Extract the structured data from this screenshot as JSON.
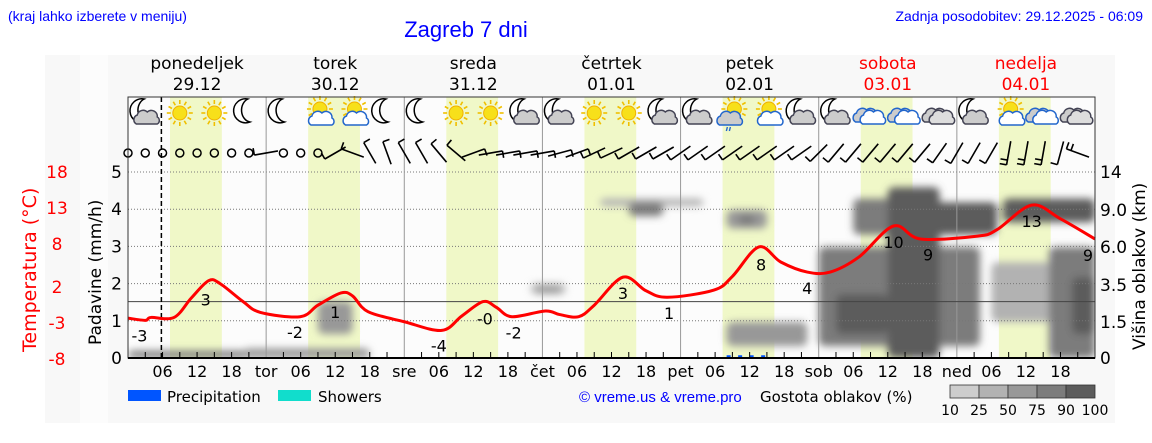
{
  "header": {
    "hint": "(kraj lahko izberete v meniju)",
    "title": "Zagreb 7 dni",
    "updated": "Zadnja posodobitev: 29.12.2025 - 06:09"
  },
  "footer": {
    "legend_precip": "Precipitation",
    "legend_showers": "Showers",
    "copyright": "© vreme.us & vreme.pro",
    "cloud_density_label": "Gostota oblakov (%)",
    "cloud_density_levels": [
      "10",
      "25",
      "50",
      "75",
      "90",
      "100"
    ],
    "cloud_density_colors": [
      "#cdcdcd",
      "#b2b2b2",
      "#989898",
      "#7c7c7c",
      "#5c5c5c"
    ]
  },
  "colors": {
    "precip": "#0055ff",
    "showers": "#11ddcc",
    "temp": "#ff0000",
    "daylight": "#f0f8c8",
    "weekend": "#ff0000",
    "text": "#0000ff"
  },
  "chart_data": {
    "type": "meteogram",
    "days": [
      {
        "name": "ponedeljek",
        "date": "29.12",
        "abbr": "",
        "weekend": false
      },
      {
        "name": "torek",
        "date": "30.12",
        "abbr": "tor",
        "weekend": false
      },
      {
        "name": "sreda",
        "date": "31.12",
        "abbr": "sre",
        "weekend": false
      },
      {
        "name": "četrtek",
        "date": "01.01",
        "abbr": "čet",
        "weekend": false
      },
      {
        "name": "petek",
        "date": "02.01",
        "abbr": "pet",
        "weekend": false
      },
      {
        "name": "sobota",
        "date": "03.01",
        "abbr": "sob",
        "weekend": true
      },
      {
        "name": "nedelja",
        "date": "04.01",
        "abbr": "ned",
        "weekend": true
      }
    ],
    "hour_ticks": [
      "06",
      "12",
      "18"
    ],
    "current_time_hour": 5.8,
    "daylight_hours": [
      7.3,
      16.3
    ],
    "precip_axis": {
      "label": "Padavine (mm/h)",
      "ticks": [
        0,
        1,
        2,
        3,
        4,
        5
      ],
      "range": [
        0,
        5.4
      ]
    },
    "temp_axis": {
      "label": "Temperatura (°C)",
      "ticks": [
        18,
        13,
        8,
        2,
        -3,
        -8
      ],
      "range": [
        -8,
        18
      ]
    },
    "cloud_axis": {
      "label": "Višina oblakov (km)",
      "ticks": [
        "14",
        "9.0",
        "6.0",
        "3.5",
        "1.5",
        "0"
      ],
      "values": [
        14,
        9,
        6,
        3.5,
        1.5,
        0
      ]
    },
    "temperature": [
      [
        0,
        -2.3
      ],
      [
        3,
        -2.6
      ],
      [
        4,
        -2.2
      ],
      [
        8,
        -2.2
      ],
      [
        11,
        0.5
      ],
      [
        14,
        2.9
      ],
      [
        16,
        2.5
      ],
      [
        20,
        0
      ],
      [
        23,
        -1.5
      ],
      [
        29.9,
        -2.1
      ],
      [
        33,
        -0.5
      ],
      [
        37,
        1.2
      ],
      [
        39,
        0.8
      ],
      [
        41.7,
        -1.4
      ],
      [
        48,
        -2.8
      ],
      [
        54.5,
        -4
      ],
      [
        58,
        -2
      ],
      [
        61.7,
        0
      ],
      [
        64,
        -0.8
      ],
      [
        66.7,
        -2.1
      ],
      [
        72.5,
        -1.3
      ],
      [
        75,
        -1.8
      ],
      [
        78.3,
        -2.1
      ],
      [
        81,
        -0.5
      ],
      [
        86,
        3.4
      ],
      [
        90,
        1.5
      ],
      [
        93.7,
        0.6
      ],
      [
        101.8,
        1.6
      ],
      [
        105,
        3.5
      ],
      [
        109.6,
        7.6
      ],
      [
        113.4,
        5.5
      ],
      [
        118,
        4.1
      ],
      [
        122,
        4.1
      ],
      [
        127,
        6.2
      ],
      [
        133,
        10.5
      ],
      [
        137.7,
        8.7
      ],
      [
        147.6,
        9.1
      ],
      [
        151,
        10
      ],
      [
        157,
        13.4
      ],
      [
        162,
        11.5
      ],
      [
        168,
        8.7
      ]
    ],
    "temp_labels": [
      [
        2,
        "-3"
      ],
      [
        13.5,
        "3"
      ],
      [
        29,
        "-2"
      ],
      [
        36,
        "1"
      ],
      [
        54,
        "-4"
      ],
      [
        62,
        "-0"
      ],
      [
        67,
        "-2"
      ],
      [
        86,
        "3"
      ],
      [
        94,
        "1"
      ],
      [
        110,
        "8"
      ],
      [
        118,
        "4"
      ],
      [
        133,
        "10"
      ],
      [
        139,
        "9"
      ],
      [
        157,
        "13"
      ],
      [
        168,
        "9"
      ]
    ],
    "precipitation": [
      [
        104,
        0.02
      ],
      [
        106,
        0.02
      ],
      [
        108,
        0.02
      ],
      [
        110,
        0.02
      ]
    ],
    "clouds": [
      [
        0,
        42,
        0,
        0.3,
        75
      ],
      [
        20,
        42,
        0,
        0.4,
        50
      ],
      [
        33,
        39,
        1,
        2.6,
        50
      ],
      [
        70,
        76,
        3,
        3.6,
        25
      ],
      [
        71,
        75,
        3.2,
        3.4,
        50
      ],
      [
        82,
        100,
        9.5,
        10.5,
        25
      ],
      [
        87,
        93,
        8.5,
        10,
        75
      ],
      [
        104,
        111,
        7.5,
        9,
        50
      ],
      [
        106,
        109,
        7.8,
        8.6,
        75
      ],
      [
        104,
        118,
        0.5,
        1.5,
        50
      ],
      [
        120,
        148,
        0.5,
        6,
        75
      ],
      [
        123,
        132,
        1,
        3,
        90
      ],
      [
        126,
        138,
        7,
        10.5,
        75
      ],
      [
        132,
        141,
        0,
        12,
        90
      ],
      [
        140,
        151,
        7,
        10,
        90
      ],
      [
        150,
        168,
        1.5,
        5,
        25
      ],
      [
        152,
        168,
        8,
        10.5,
        90
      ],
      [
        160,
        168,
        0,
        6,
        75
      ],
      [
        164,
        168,
        1,
        4,
        90
      ]
    ],
    "icons": [
      "moon-cloud",
      "sun",
      "sun",
      "moon",
      "moon",
      "sun-cloud",
      "sun-cloud",
      "moon",
      "moon",
      "sun",
      "sun",
      "moon-cloud",
      "moon-cloud",
      "sun",
      "sun",
      "moon-cloud",
      "moon-cloud",
      "sun-cloud-drizzle",
      "sun-cloud",
      "moon-cloud",
      "moon-cloud",
      "cloud",
      "cloud",
      "cloud-dark",
      "moon-cloud",
      "sun-cloud",
      "cloud",
      "cloud-dark"
    ],
    "wind": [
      [
        0,
        0
      ],
      [
        0,
        0
      ],
      [
        0,
        0
      ],
      [
        0,
        0
      ],
      [
        0,
        0
      ],
      [
        0,
        0
      ],
      [
        0,
        0
      ],
      [
        0,
        0
      ],
      [
        260,
        5
      ],
      [
        0,
        0
      ],
      [
        0,
        0
      ],
      [
        0,
        0
      ],
      [
        240,
        5
      ],
      [
        290,
        8
      ],
      [
        330,
        8
      ],
      [
        340,
        8
      ],
      [
        330,
        8
      ],
      [
        330,
        8
      ],
      [
        320,
        8
      ],
      [
        310,
        8
      ],
      [
        70,
        8
      ],
      [
        80,
        8
      ],
      [
        80,
        8
      ],
      [
        80,
        8
      ],
      [
        80,
        8
      ],
      [
        75,
        8
      ],
      [
        70,
        8
      ],
      [
        245,
        8
      ],
      [
        245,
        8
      ],
      [
        240,
        8
      ],
      [
        240,
        8
      ],
      [
        240,
        8
      ],
      [
        235,
        8
      ],
      [
        235,
        8
      ],
      [
        235,
        8
      ],
      [
        235,
        8
      ],
      [
        235,
        8
      ],
      [
        235,
        8
      ],
      [
        235,
        8
      ],
      [
        235,
        8
      ],
      [
        225,
        8
      ],
      [
        220,
        8
      ],
      [
        220,
        8
      ],
      [
        220,
        8
      ],
      [
        220,
        8
      ],
      [
        220,
        8
      ],
      [
        220,
        8
      ],
      [
        215,
        8
      ],
      [
        210,
        8
      ],
      [
        210,
        8
      ],
      [
        210,
        8
      ],
      [
        190,
        10
      ],
      [
        190,
        10
      ],
      [
        190,
        10
      ],
      [
        195,
        8
      ],
      [
        290,
        10
      ]
    ]
  }
}
